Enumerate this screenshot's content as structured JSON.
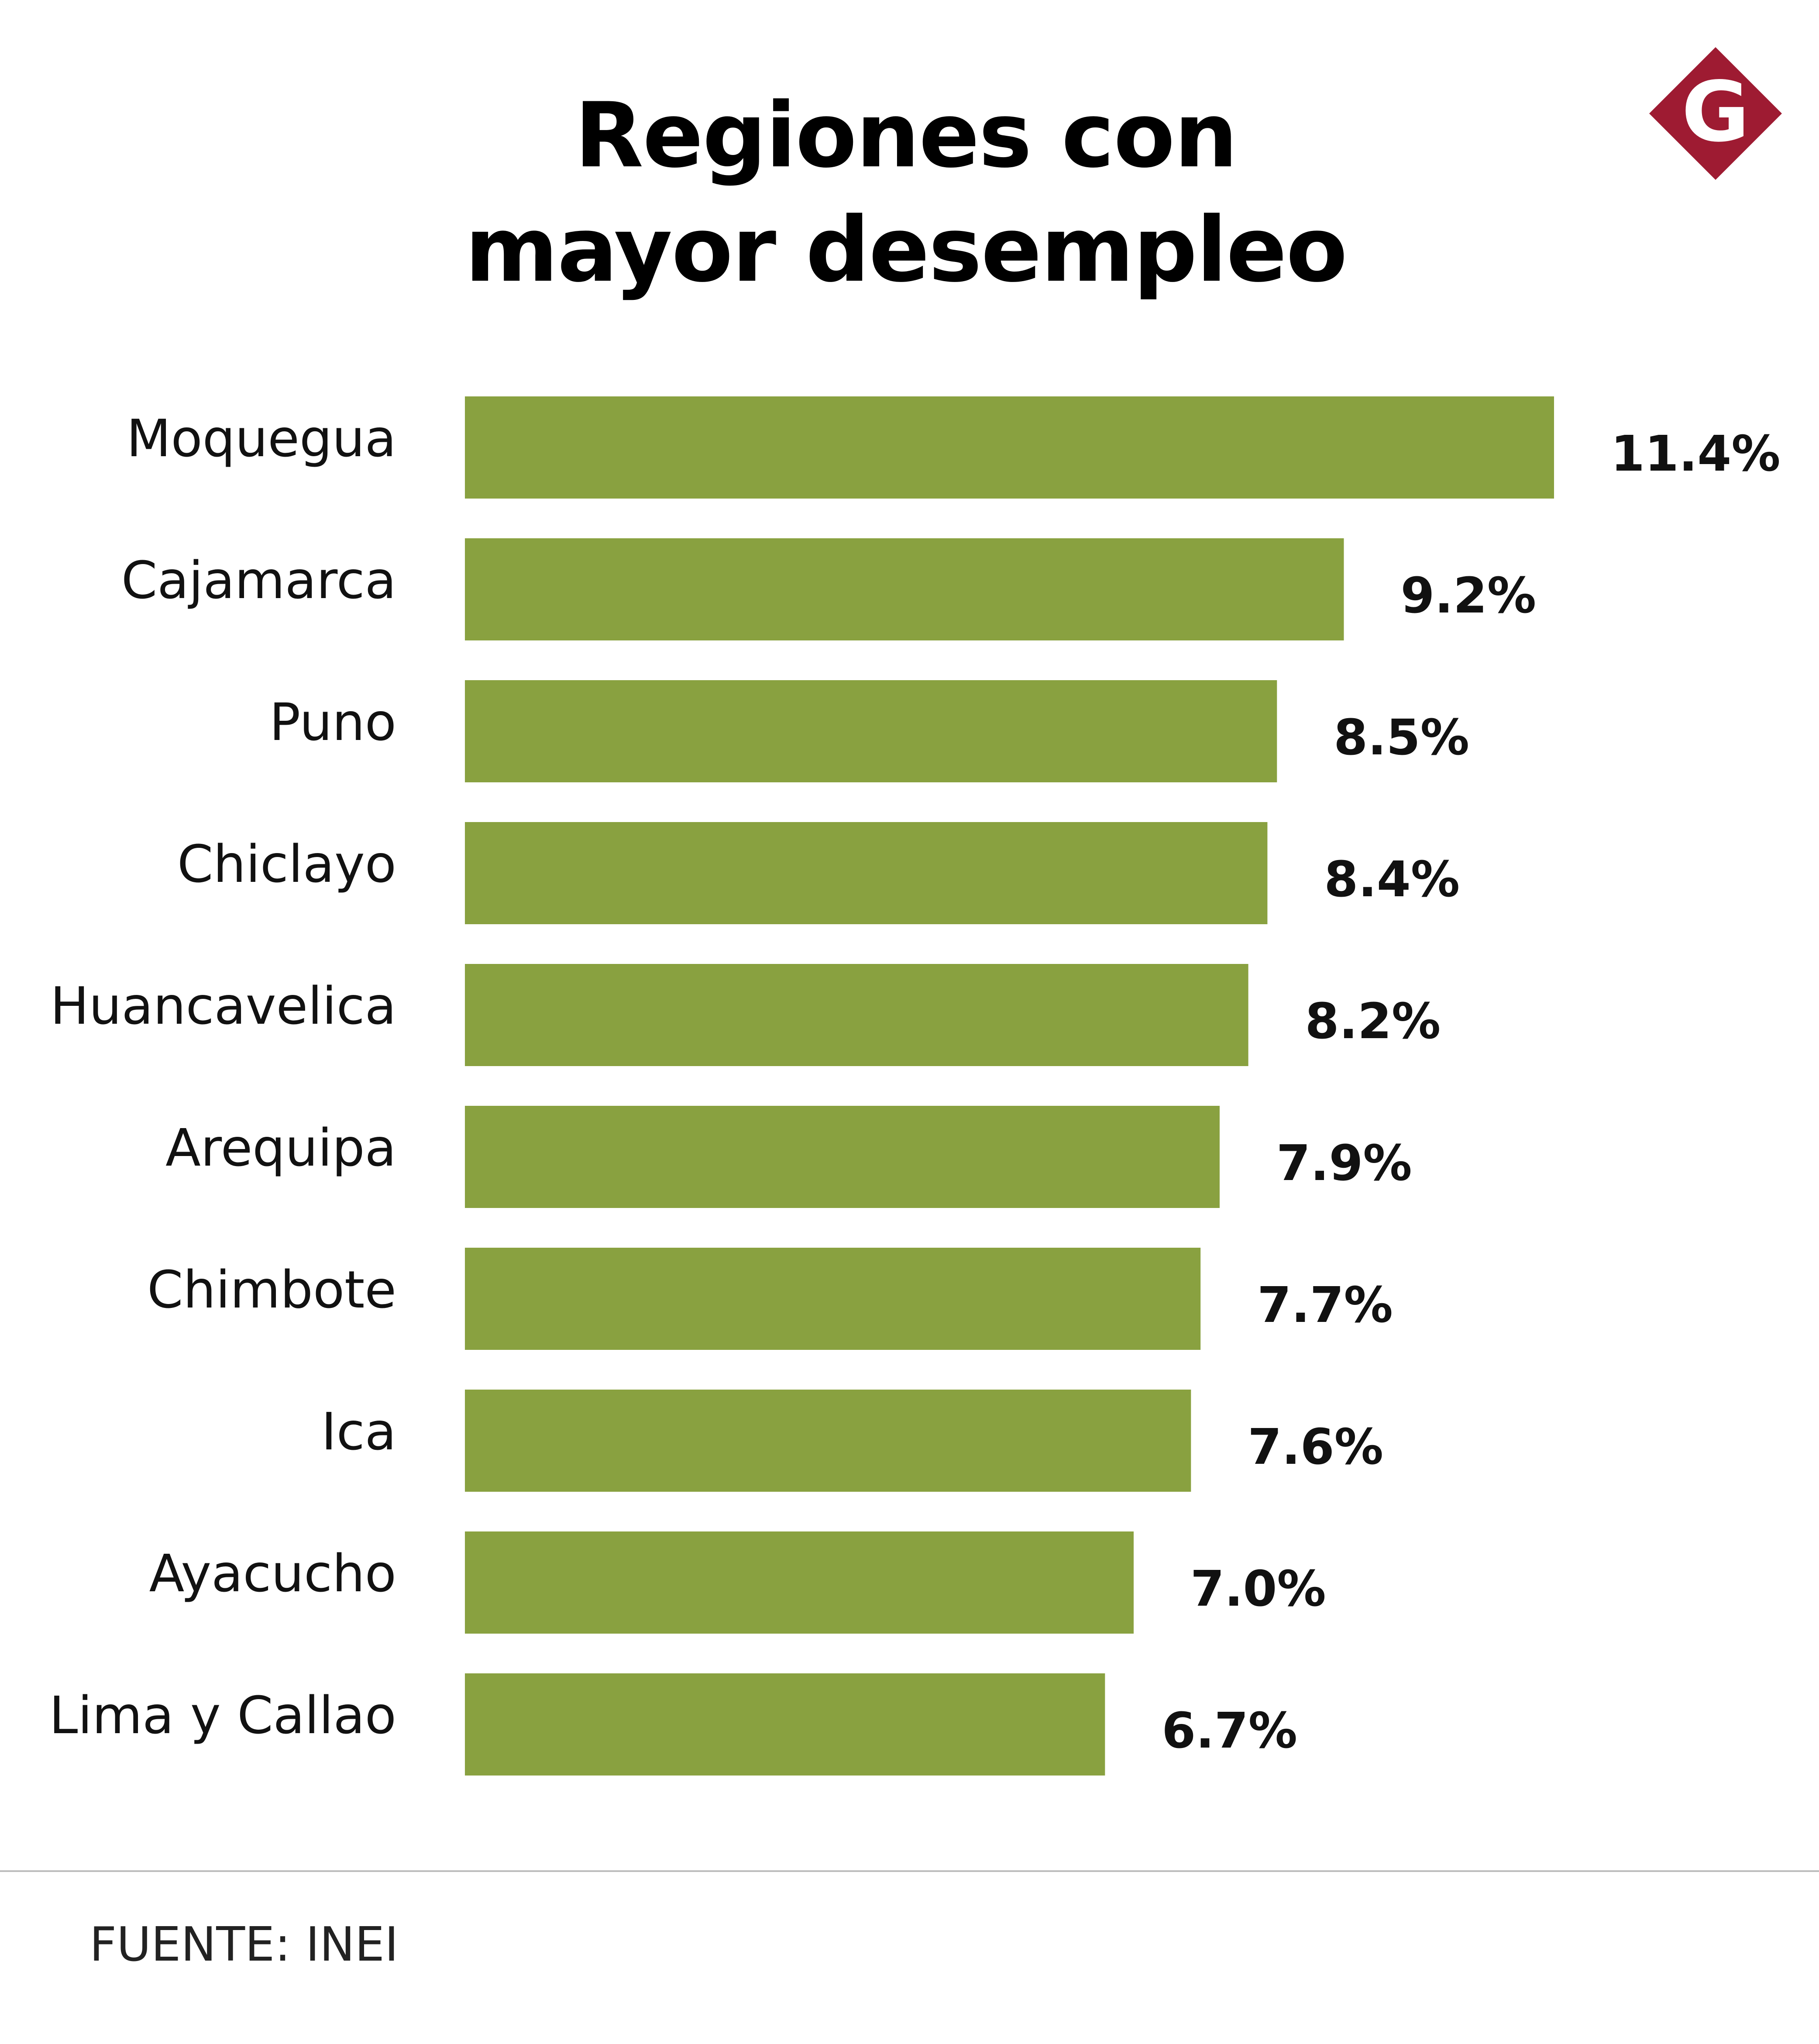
{
  "title_lines": [
    "Regiones con",
    "mayor desempleo"
  ],
  "source": "FUENTE: INEI",
  "logo": {
    "letter": "G",
    "color": "#9e1b32"
  },
  "colors": {
    "bar": "#89a140",
    "text": "#111111"
  },
  "chart_data": {
    "type": "bar",
    "orientation": "horizontal",
    "title": "Regiones con mayor desempleo",
    "categories": [
      "Moquegua",
      "Cajamarca",
      "Puno",
      "Chiclayo",
      "Huancavelica",
      "Arequipa",
      "Chimbote",
      "Ica",
      "Ayacucho",
      "Lima y Callao"
    ],
    "values": [
      11.4,
      9.2,
      8.5,
      8.4,
      8.2,
      7.9,
      7.7,
      7.6,
      7.0,
      6.7
    ],
    "value_labels": [
      "11.4%",
      "9.2%",
      "8.5%",
      "8.4%",
      "8.2%",
      "7.9%",
      "7.7%",
      "7.6%",
      "7.0%",
      "6.7%"
    ],
    "xlim": [
      0,
      11.4
    ],
    "grid": false,
    "legend": "none"
  }
}
